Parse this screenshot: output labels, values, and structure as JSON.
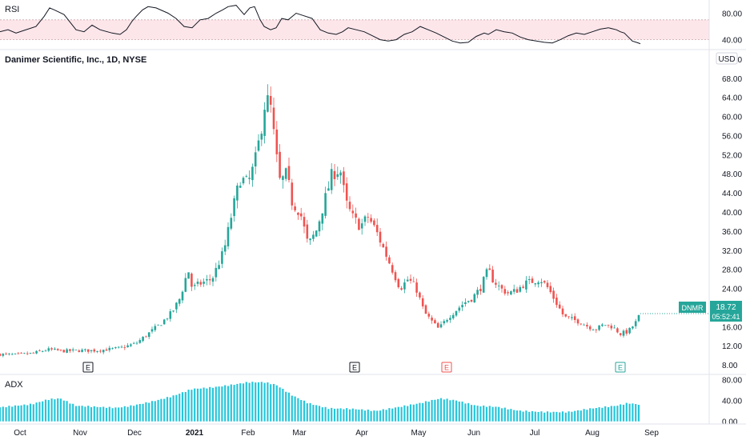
{
  "chart_data": [
    {
      "type": "line",
      "pane": "rsi",
      "title": "RSI",
      "y_ticks": [
        "80.00",
        "40.00"
      ],
      "ylim": [
        25,
        100
      ],
      "band": [
        40,
        70
      ],
      "x": [
        0,
        10,
        20,
        30,
        45,
        55,
        62,
        68,
        80,
        95,
        105,
        115,
        125,
        140,
        150,
        158,
        165,
        170,
        178,
        185,
        195,
        210,
        220,
        230,
        240,
        250,
        260,
        270,
        278,
        285,
        295,
        300,
        305,
        312,
        318,
        325,
        330,
        338,
        345,
        352,
        360,
        370,
        380,
        390,
        400,
        410,
        420,
        428,
        435,
        445,
        455,
        465,
        475,
        485,
        495,
        505,
        515,
        525,
        535,
        545,
        555,
        565,
        575,
        585,
        595,
        605,
        610,
        620,
        630,
        640,
        650,
        660,
        670,
        680,
        690,
        700,
        710,
        720,
        730,
        740,
        750,
        760,
        770,
        775,
        780,
        785,
        790,
        795,
        800
      ],
      "values": [
        52,
        55,
        50,
        54,
        60,
        75,
        88,
        85,
        78,
        55,
        52,
        62,
        55,
        50,
        48,
        55,
        68,
        75,
        85,
        90,
        88,
        80,
        72,
        60,
        58,
        70,
        72,
        80,
        85,
        90,
        92,
        85,
        78,
        88,
        90,
        70,
        60,
        55,
        58,
        72,
        70,
        80,
        76,
        72,
        55,
        50,
        48,
        52,
        58,
        55,
        52,
        46,
        40,
        38,
        40,
        48,
        52,
        60,
        55,
        50,
        44,
        38,
        35,
        36,
        45,
        50,
        48,
        55,
        52,
        50,
        44,
        40,
        38,
        36,
        35,
        40,
        46,
        50,
        48,
        52,
        56,
        58,
        55,
        52,
        50,
        44,
        38,
        36,
        34
      ],
      "series_color": "#131722",
      "band_color": "#fde6ea"
    },
    {
      "type": "candlestick",
      "pane": "price",
      "title": "Danimer Scientific, Inc., 1D, NYSE",
      "currency": "USD",
      "y_ticks": [
        "72.00",
        "68.00",
        "64.00",
        "60.00",
        "56.00",
        "52.00",
        "48.00",
        "44.00",
        "40.00",
        "36.00",
        "32.00",
        "28.00",
        "24.00",
        "20.00",
        "16.00",
        "12.00",
        "8.00"
      ],
      "ylim": [
        6,
        74
      ],
      "up_color": "#26a69a",
      "down_color": "#ef5350",
      "symbol": "DNMR",
      "last_price": "18.72",
      "countdown": "05:52:41",
      "earnings_markers": [
        {
          "date": "Nov 12",
          "label": "E",
          "style": "neutral"
        },
        {
          "date": "Mar 23",
          "label": "E",
          "style": "neutral"
        },
        {
          "date": "May 13",
          "label": "E",
          "style": "down"
        },
        {
          "date": "Aug 16",
          "label": "E",
          "style": "up"
        }
      ],
      "ohlc_anchors": [
        [
          0,
          10.2
        ],
        [
          20,
          10.1
        ],
        [
          40,
          10.4
        ],
        [
          60,
          11.2
        ],
        [
          80,
          10.9
        ],
        [
          100,
          11.0
        ],
        [
          120,
          11.0
        ],
        [
          150,
          11.5
        ],
        [
          170,
          12.5
        ],
        [
          185,
          14.5
        ],
        [
          200,
          16.5
        ],
        [
          215,
          19.0
        ],
        [
          225,
          22.0
        ],
        [
          235,
          28.0
        ],
        [
          240,
          24.0
        ],
        [
          250,
          25.0
        ],
        [
          265,
          26.0
        ],
        [
          280,
          32.0
        ],
        [
          290,
          40.0
        ],
        [
          300,
          47.0
        ],
        [
          310,
          46.0
        ],
        [
          318,
          50.0
        ],
        [
          325,
          56.0
        ],
        [
          332,
          64.0
        ],
        [
          338,
          62.0
        ],
        [
          345,
          52.0
        ],
        [
          350,
          46.0
        ],
        [
          358,
          48.0
        ],
        [
          365,
          42.0
        ],
        [
          375,
          40.0
        ],
        [
          385,
          33.0
        ],
        [
          395,
          36.0
        ],
        [
          405,
          42.0
        ],
        [
          415,
          48.0
        ],
        [
          425,
          49.0
        ],
        [
          432,
          42.0
        ],
        [
          440,
          39.0
        ],
        [
          450,
          37.0
        ],
        [
          460,
          39.0
        ],
        [
          470,
          36.0
        ],
        [
          480,
          32.0
        ],
        [
          490,
          28.0
        ],
        [
          500,
          24.0
        ],
        [
          510,
          26.0
        ],
        [
          520,
          24.0
        ],
        [
          530,
          19.0
        ],
        [
          540,
          17.0
        ],
        [
          548,
          15.5
        ],
        [
          560,
          18.0
        ],
        [
          570,
          19.5
        ],
        [
          580,
          21.0
        ],
        [
          590,
          22.0
        ],
        [
          600,
          24.0
        ],
        [
          610,
          28.0
        ],
        [
          615,
          26.0
        ],
        [
          625,
          24.0
        ],
        [
          635,
          23.0
        ],
        [
          645,
          23.5
        ],
        [
          655,
          25.0
        ],
        [
          665,
          25.5
        ],
        [
          675,
          26.0
        ],
        [
          685,
          24.0
        ],
        [
          695,
          21.0
        ],
        [
          705,
          18.0
        ],
        [
          715,
          17.5
        ],
        [
          725,
          17.0
        ],
        [
          735,
          16.0
        ],
        [
          745,
          15.5
        ],
        [
          755,
          16.5
        ],
        [
          765,
          16.0
        ],
        [
          775,
          14.5
        ],
        [
          785,
          15.0
        ],
        [
          795,
          17.0
        ],
        [
          800,
          18.72
        ]
      ]
    },
    {
      "type": "bar",
      "pane": "adx",
      "title": "ADX",
      "y_ticks": [
        "80.00",
        "40.00",
        "0.00"
      ],
      "ylim": [
        -5,
        90
      ],
      "bar_color": "#26c6da",
      "anchors": [
        [
          0,
          27
        ],
        [
          40,
          33
        ],
        [
          60,
          42
        ],
        [
          75,
          44
        ],
        [
          95,
          30
        ],
        [
          120,
          28
        ],
        [
          145,
          26
        ],
        [
          165,
          30
        ],
        [
          190,
          38
        ],
        [
          215,
          48
        ],
        [
          240,
          62
        ],
        [
          265,
          65
        ],
        [
          290,
          70
        ],
        [
          310,
          75
        ],
        [
          330,
          75
        ],
        [
          345,
          70
        ],
        [
          365,
          50
        ],
        [
          385,
          35
        ],
        [
          410,
          25
        ],
        [
          440,
          24
        ],
        [
          470,
          20
        ],
        [
          500,
          28
        ],
        [
          525,
          35
        ],
        [
          550,
          44
        ],
        [
          570,
          40
        ],
        [
          595,
          30
        ],
        [
          620,
          28
        ],
        [
          650,
          20
        ],
        [
          680,
          18
        ],
        [
          710,
          18
        ],
        [
          740,
          25
        ],
        [
          770,
          30
        ],
        [
          785,
          35
        ],
        [
          800,
          32
        ]
      ]
    }
  ],
  "x_axis": {
    "labels": [
      "Oct",
      "Nov",
      "Dec",
      "2021",
      "Feb",
      "Mar",
      "Apr",
      "May",
      "Jun",
      "Jul",
      "Aug",
      "Sep"
    ],
    "bold": [
      "2021"
    ]
  }
}
